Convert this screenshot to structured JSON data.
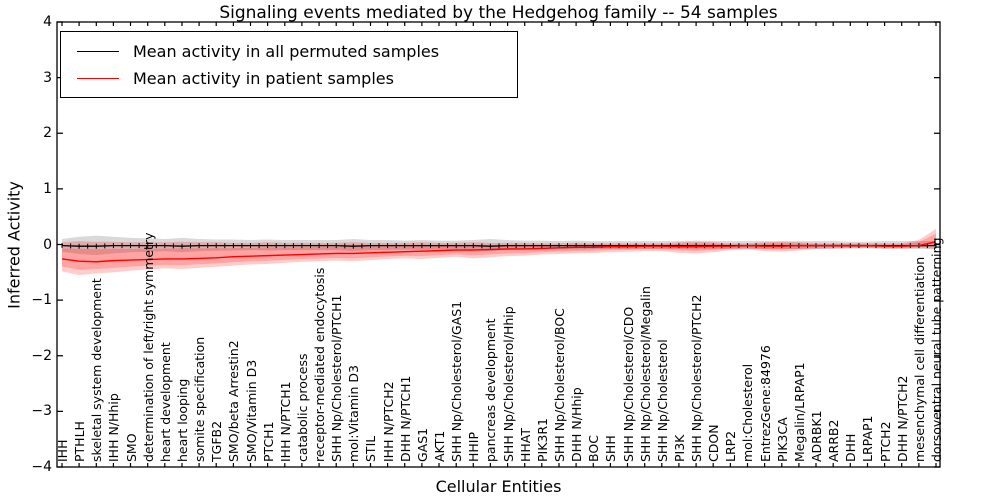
{
  "figure": {
    "title": "Signaling events mediated by the Hedgehog family -- 54 samples",
    "xlabel": "Cellular Entities",
    "ylabel": "Inferred Activity"
  },
  "legend": {
    "position": "upper left",
    "entries": [
      {
        "label": "Mean activity in all permuted samples",
        "color": "#000000"
      },
      {
        "label": "Mean activity in patient samples",
        "color": "#ff0000"
      }
    ]
  },
  "colors": {
    "permuted_line": "#000000",
    "patient_line": "#ff0000",
    "permuted_band": "rgba(0,0,0,0.15)",
    "patient_band": "rgba(255,0,0,0.20)",
    "axes": "#000000",
    "background": "#ffffff"
  },
  "chart_data": {
    "type": "line",
    "title": "Signaling events mediated by the Hedgehog family -- 54 samples",
    "xlabel": "Cellular Entities",
    "ylabel": "Inferred Activity",
    "ylim": [
      -4,
      4
    ],
    "grid": false,
    "yticks": [
      {
        "v": 4,
        "t": "4"
      },
      {
        "v": 3,
        "t": "3"
      },
      {
        "v": 2,
        "t": "2"
      },
      {
        "v": 1,
        "t": "1"
      },
      {
        "v": 0,
        "t": "0"
      },
      {
        "v": -1,
        "t": "−1"
      },
      {
        "v": -2,
        "t": "−2"
      },
      {
        "v": -3,
        "t": "−3"
      },
      {
        "v": -4,
        "t": "−4"
      }
    ],
    "entities": [
      "IHH",
      "PTHLH",
      "skeletal system development",
      "IHH N/Hhip",
      "SMO",
      "determination of left/right symmetry",
      "heart development",
      "heart looping",
      "somite specification",
      "TGFB2",
      "SMO/beta Arrestin2",
      "SMO/Vitamin D3",
      "PTCH1",
      "IHH N/PTCH1",
      "catabolic process",
      "receptor-mediated endocytosis",
      "SHH Np/Cholesterol/PTCH1",
      "mol:Vitamin D3",
      "STIL",
      "IHH N/PTCH2",
      "DHH N/PTCH1",
      "GAS1",
      "AKT1",
      "SHH Np/Cholesterol/GAS1",
      "HHIP",
      "pancreas development",
      "SHH Np/Cholesterol/Hhip",
      "HHAT",
      "PIK3R1",
      "SHH Np/Cholesterol/BOC",
      "DHH N/Hhip",
      "BOC",
      "SHH",
      "SHH Np/Cholesterol/CDO",
      "SHH Np/Cholesterol/Megalin",
      "SHH Np/Cholesterol",
      "PI3K",
      "SHH Np/Cholesterol/PTCH2",
      "CDON",
      "LRP2",
      "mol:Cholesterol",
      "EntrezGene:84976",
      "PIK3CA",
      "Megalin/LRPAP1",
      "ADRBK1",
      "ARRB2",
      "DHH",
      "LRPAP1",
      "PTCH2",
      "DHH N/PTCH2",
      "mesenchymal cell differentiation",
      "dorsoventral neural tube patterning"
    ],
    "series": [
      {
        "name": "Mean activity in all permuted samples",
        "mean": [
          -0.02,
          -0.03,
          -0.03,
          -0.02,
          -0.02,
          -0.02,
          -0.02,
          -0.03,
          -0.02,
          -0.02,
          -0.02,
          -0.02,
          -0.02,
          -0.02,
          -0.02,
          -0.02,
          -0.02,
          -0.03,
          -0.02,
          -0.02,
          -0.02,
          -0.02,
          -0.02,
          -0.02,
          -0.02,
          -0.03,
          -0.02,
          -0.02,
          -0.02,
          -0.02,
          -0.02,
          -0.02,
          -0.02,
          -0.02,
          -0.02,
          -0.02,
          -0.02,
          -0.02,
          -0.02,
          -0.02,
          -0.02,
          -0.02,
          -0.02,
          -0.02,
          -0.02,
          -0.02,
          -0.02,
          -0.02,
          -0.02,
          -0.02,
          -0.02,
          -0.02
        ],
        "upper": [
          0.1,
          0.14,
          0.16,
          0.14,
          0.12,
          0.11,
          0.1,
          0.12,
          0.1,
          0.09,
          0.09,
          0.08,
          0.09,
          0.08,
          0.08,
          0.08,
          0.08,
          0.1,
          0.08,
          0.08,
          0.07,
          0.08,
          0.07,
          0.07,
          0.08,
          0.1,
          0.08,
          0.07,
          0.07,
          0.06,
          0.07,
          0.06,
          0.06,
          0.06,
          0.06,
          0.06,
          0.06,
          0.07,
          0.06,
          0.06,
          0.06,
          0.06,
          0.06,
          0.06,
          0.06,
          0.06,
          0.05,
          0.05,
          0.06,
          0.06,
          0.06,
          0.06
        ],
        "lower": [
          -0.13,
          -0.17,
          -0.19,
          -0.16,
          -0.14,
          -0.13,
          -0.12,
          -0.14,
          -0.12,
          -0.11,
          -0.11,
          -0.1,
          -0.11,
          -0.1,
          -0.1,
          -0.1,
          -0.1,
          -0.12,
          -0.1,
          -0.1,
          -0.09,
          -0.1,
          -0.09,
          -0.09,
          -0.1,
          -0.12,
          -0.1,
          -0.09,
          -0.09,
          -0.08,
          -0.09,
          -0.08,
          -0.08,
          -0.08,
          -0.08,
          -0.08,
          -0.08,
          -0.09,
          -0.08,
          -0.08,
          -0.08,
          -0.08,
          -0.08,
          -0.08,
          -0.08,
          -0.08,
          -0.07,
          -0.07,
          -0.08,
          -0.08,
          -0.08,
          -0.08
        ]
      },
      {
        "name": "Mean activity in patient samples",
        "mean": [
          -0.26,
          -0.3,
          -0.31,
          -0.29,
          -0.28,
          -0.27,
          -0.26,
          -0.26,
          -0.25,
          -0.24,
          -0.22,
          -0.21,
          -0.2,
          -0.19,
          -0.18,
          -0.17,
          -0.16,
          -0.16,
          -0.15,
          -0.14,
          -0.13,
          -0.12,
          -0.11,
          -0.1,
          -0.1,
          -0.09,
          -0.08,
          -0.08,
          -0.07,
          -0.06,
          -0.05,
          -0.05,
          -0.04,
          -0.04,
          -0.03,
          -0.03,
          -0.04,
          -0.04,
          -0.03,
          -0.03,
          -0.02,
          -0.03,
          -0.03,
          -0.02,
          -0.02,
          -0.02,
          -0.02,
          -0.02,
          -0.03,
          -0.03,
          -0.02,
          0.05
        ],
        "upper": [
          0.04,
          0.06,
          0.05,
          0.05,
          0.04,
          0.04,
          0.04,
          0.05,
          0.04,
          0.04,
          0.03,
          0.03,
          0.04,
          0.03,
          0.03,
          0.03,
          0.03,
          0.04,
          0.03,
          0.03,
          0.03,
          0.04,
          0.03,
          0.03,
          0.04,
          0.03,
          0.03,
          0.03,
          0.02,
          0.02,
          0.03,
          0.02,
          0.02,
          0.02,
          0.02,
          0.02,
          0.04,
          0.05,
          0.04,
          0.02,
          0.02,
          0.04,
          0.05,
          0.04,
          0.02,
          0.02,
          0.02,
          0.02,
          0.02,
          0.02,
          0.08,
          0.28
        ],
        "lower": [
          -0.48,
          -0.55,
          -0.52,
          -0.5,
          -0.47,
          -0.45,
          -0.43,
          -0.44,
          -0.42,
          -0.4,
          -0.38,
          -0.36,
          -0.35,
          -0.33,
          -0.31,
          -0.3,
          -0.29,
          -0.3,
          -0.28,
          -0.26,
          -0.25,
          -0.26,
          -0.24,
          -0.22,
          -0.25,
          -0.23,
          -0.21,
          -0.2,
          -0.18,
          -0.17,
          -0.16,
          -0.15,
          -0.14,
          -0.13,
          -0.12,
          -0.12,
          -0.15,
          -0.16,
          -0.14,
          -0.1,
          -0.09,
          -0.12,
          -0.13,
          -0.11,
          -0.08,
          -0.07,
          -0.07,
          -0.06,
          -0.07,
          -0.07,
          -0.06,
          -0.08
        ]
      }
    ]
  }
}
